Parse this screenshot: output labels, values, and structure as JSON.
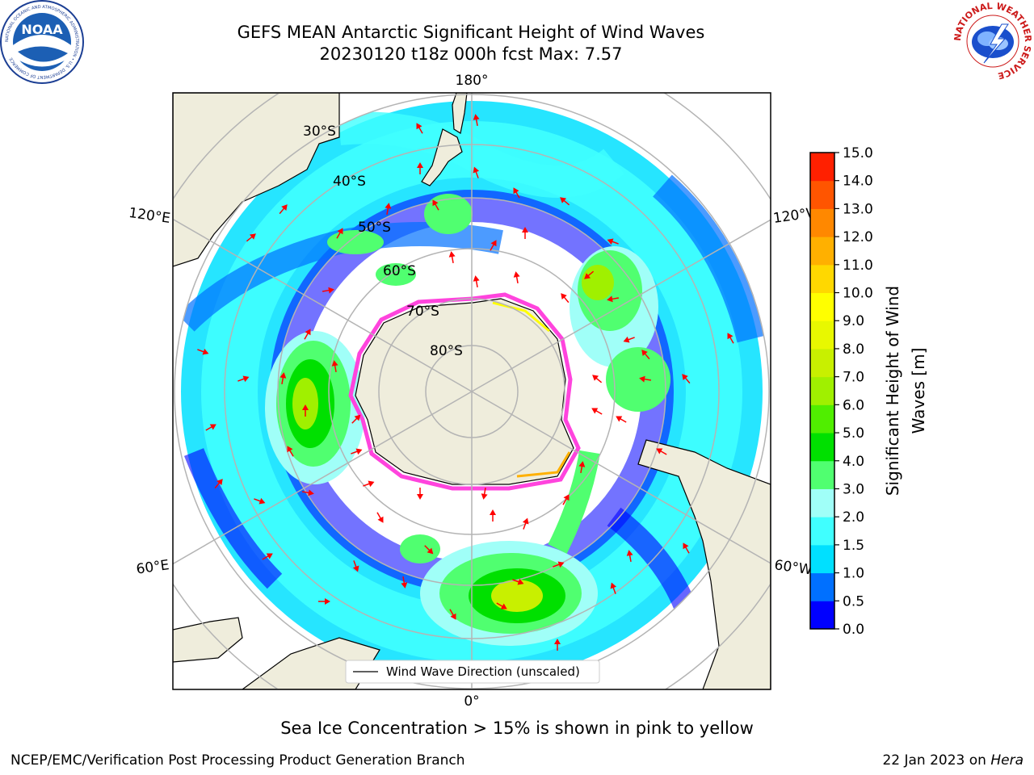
{
  "header": {
    "title_line1": "GEFS MEAN Antarctic Significant Height of Wind Waves",
    "title_line2": "20230120 t18z 000h fcst   Max: 7.57",
    "noaa_logo_text": "NOAA",
    "noaa_logo_ring_text": "NATIONAL OCEANIC AND ATMOSPHERIC ADMINISTRATION • U.S. DEPARTMENT OF COMMERCE",
    "nws_logo_ring_text": "NATIONAL WEATHER SERVICE"
  },
  "map": {
    "projection": "south-polar-stereographic",
    "lon_labels": {
      "top": "180°",
      "bottom": "0°",
      "left_upper": "120°E",
      "left_lower": "60°E",
      "right_upper": "120°W",
      "right_lower": "60°W"
    },
    "lat_labels": [
      "30°S",
      "40°S",
      "50°S",
      "60°S",
      "70°S",
      "80°S"
    ],
    "legend_label": "Wind Wave Direction (unscaled)",
    "colors": {
      "land": "#efeddc",
      "arrow": "#ff0000",
      "grid": "#b4b4b4",
      "sea_ice": "#ff44dd"
    },
    "wave_regions": [
      {
        "region": "south-indian-ocean-storm",
        "level_m": 6.0
      },
      {
        "region": "south-atlantic-storm",
        "level_m": 7.5
      },
      {
        "region": "south-pacific-storm",
        "level_m": 4.5
      },
      {
        "region": "tasman-sea",
        "level_m": 3.5
      }
    ]
  },
  "colorbar": {
    "label": "Significant Height of Wind Waves [m]",
    "label_line1": "Significant Height of Wind",
    "label_line2": "Waves [m]",
    "ticks": [
      "0.0",
      "0.5",
      "1.0",
      "1.5",
      "2.0",
      "3.0",
      "4.0",
      "5.0",
      "6.0",
      "7.0",
      "8.0",
      "9.0",
      "10.0",
      "11.0",
      "12.0",
      "13.0",
      "14.0",
      "15.0"
    ],
    "colors": [
      "#0000ff",
      "#0070ff",
      "#00e0ff",
      "#40ffff",
      "#a0fff8",
      "#50ff70",
      "#00e000",
      "#50ee00",
      "#a0f000",
      "#c8f000",
      "#e8f800",
      "#ffff00",
      "#ffd800",
      "#ffb000",
      "#ff8800",
      "#ff5500",
      "#ff2000"
    ]
  },
  "footer": {
    "sea_ice_note": "Sea Ice Concentration > 15% is shown in pink to yellow",
    "branch": "NCEP/EMC/Verification Post Processing Product Generation Branch",
    "date": "22 Jan 2023 on ",
    "machine": "Hera"
  }
}
